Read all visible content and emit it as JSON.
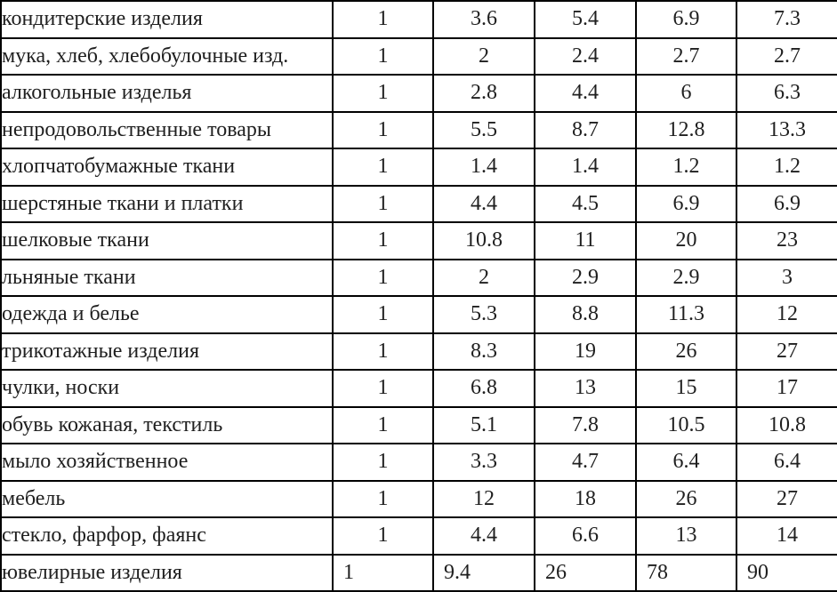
{
  "colors": {
    "border": "#000000",
    "text": "#1f1f1f",
    "background": "#ffffff"
  },
  "table": {
    "description": "table of product categories with five numeric index values per row",
    "rows": [
      {
        "label": "кондитерские изделия",
        "values": [
          "1",
          "3.6",
          "5.4",
          "6.9",
          "7.3"
        ],
        "align": "center"
      },
      {
        "label": "мука, хлеб, хлебобулочные изд.",
        "values": [
          "1",
          "2",
          "2.4",
          "2.7",
          "2.7"
        ],
        "align": "center"
      },
      {
        "label": "алкогольные изделья",
        "values": [
          "1",
          "2.8",
          "4.4",
          "6",
          "6.3"
        ],
        "align": "center"
      },
      {
        "label": "непродовольственные товары",
        "values": [
          "1",
          "5.5",
          "8.7",
          "12.8",
          "13.3"
        ],
        "align": "center"
      },
      {
        "label": "хлопчатобумажные ткани",
        "values": [
          "1",
          "1.4",
          "1.4",
          "1.2",
          "1.2"
        ],
        "align": "center"
      },
      {
        "label": "шерстяные ткани и платки",
        "values": [
          "1",
          "4.4",
          "4.5",
          "6.9",
          "6.9"
        ],
        "align": "center"
      },
      {
        "label": "шелковые ткани",
        "values": [
          "1",
          "10.8",
          "11",
          "20",
          "23"
        ],
        "align": "center"
      },
      {
        "label": "льняные ткани",
        "values": [
          "1",
          "2",
          "2.9",
          "2.9",
          "3"
        ],
        "align": "center"
      },
      {
        "label": "одежда и белье",
        "values": [
          "1",
          "5.3",
          "8.8",
          "11.3",
          "12"
        ],
        "align": "center"
      },
      {
        "label": "трикотажные изделия",
        "values": [
          "1",
          "8.3",
          "19",
          "26",
          "27"
        ],
        "align": "center"
      },
      {
        "label": "чулки, носки",
        "values": [
          "1",
          "6.8",
          "13",
          "15",
          "17"
        ],
        "align": "center"
      },
      {
        "label": "обувь кожаная, текстиль",
        "values": [
          "1",
          "5.1",
          "7.8",
          "10.5",
          "10.8"
        ],
        "align": "center"
      },
      {
        "label": "мыло хозяйственное",
        "values": [
          "1",
          "3.3",
          "4.7",
          "6.4",
          "6.4"
        ],
        "align": "center"
      },
      {
        "label": "мебель",
        "values": [
          "1",
          "12",
          "18",
          "26",
          "27"
        ],
        "align": "center"
      },
      {
        "label": "стекло, фарфор, фаянс",
        "values": [
          "1",
          "4.4",
          "6.6",
          "13",
          "14"
        ],
        "align": "center"
      },
      {
        "label": "ювелирные изделия",
        "values": [
          "1",
          "9.4",
          "26",
          "78",
          "90"
        ],
        "align": "left"
      }
    ]
  }
}
